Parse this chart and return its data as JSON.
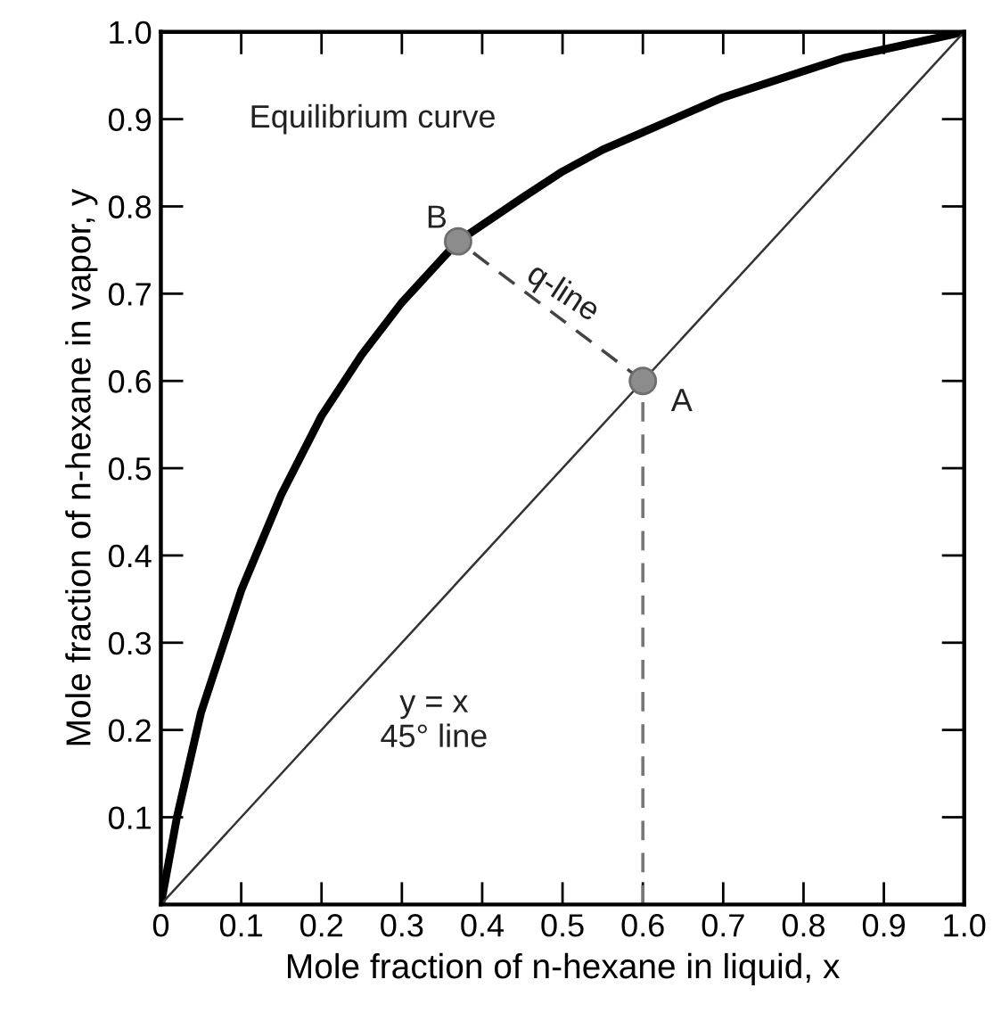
{
  "chart_data": {
    "type": "line",
    "xlabel": "Mole fraction of n-hexane in liquid, x",
    "ylabel": "Mole fraction of n-hexane in vapor, y",
    "xlim": [
      0,
      1.0
    ],
    "ylim": [
      0,
      1.0
    ],
    "xticks": [
      0,
      0.1,
      0.2,
      0.3,
      0.4,
      0.5,
      0.6,
      0.7,
      0.8,
      0.9,
      {
        "value": 1.0,
        "label": "1.0"
      }
    ],
    "yticks": [
      0.1,
      0.2,
      0.3,
      0.4,
      0.5,
      0.6,
      0.7,
      0.8,
      0.9,
      {
        "value": 1.0,
        "label": "1.0"
      }
    ],
    "grid": false,
    "legend": false,
    "series": [
      {
        "color": "#000000",
        "line_style": "solid",
        "x": [
          0,
          0.01,
          0.02,
          0.05,
          0.1,
          0.15,
          0.2,
          0.25,
          0.3,
          0.37,
          0.45,
          0.5,
          0.55,
          0.6,
          0.65,
          0.7,
          0.75,
          0.8,
          0.85,
          0.9,
          0.95,
          1.0
        ],
        "values": [
          0,
          0.05,
          0.1,
          0.22,
          0.36,
          0.47,
          0.56,
          0.63,
          0.69,
          0.76,
          0.81,
          0.84,
          0.865,
          0.885,
          0.905,
          0.925,
          0.94,
          0.955,
          0.97,
          0.98,
          0.99,
          1.0
        ]
      },
      {
        "color": "#333333",
        "line_style": "solid",
        "x": [
          0,
          1.0
        ],
        "values": [
          0,
          1.0
        ]
      },
      {
        "color": "#444444",
        "line_style": "dashed",
        "x": [
          0.6,
          0.37
        ],
        "values": [
          0.6,
          0.76
        ]
      },
      {
        "color": "#777777",
        "line_style": "dashed",
        "x": [
          0.6,
          0.6
        ],
        "values": [
          0,
          0.6
        ]
      },
      {
        "type": "scatter",
        "color": "#8c8c8c",
        "marker": "circle",
        "x": [
          0.6,
          0.37
        ],
        "values": [
          0.6,
          0.76
        ]
      }
    ],
    "annotations": [
      "Equilibrium curve",
      "B",
      "A",
      "q-line",
      "y = x\n45° line"
    ]
  }
}
